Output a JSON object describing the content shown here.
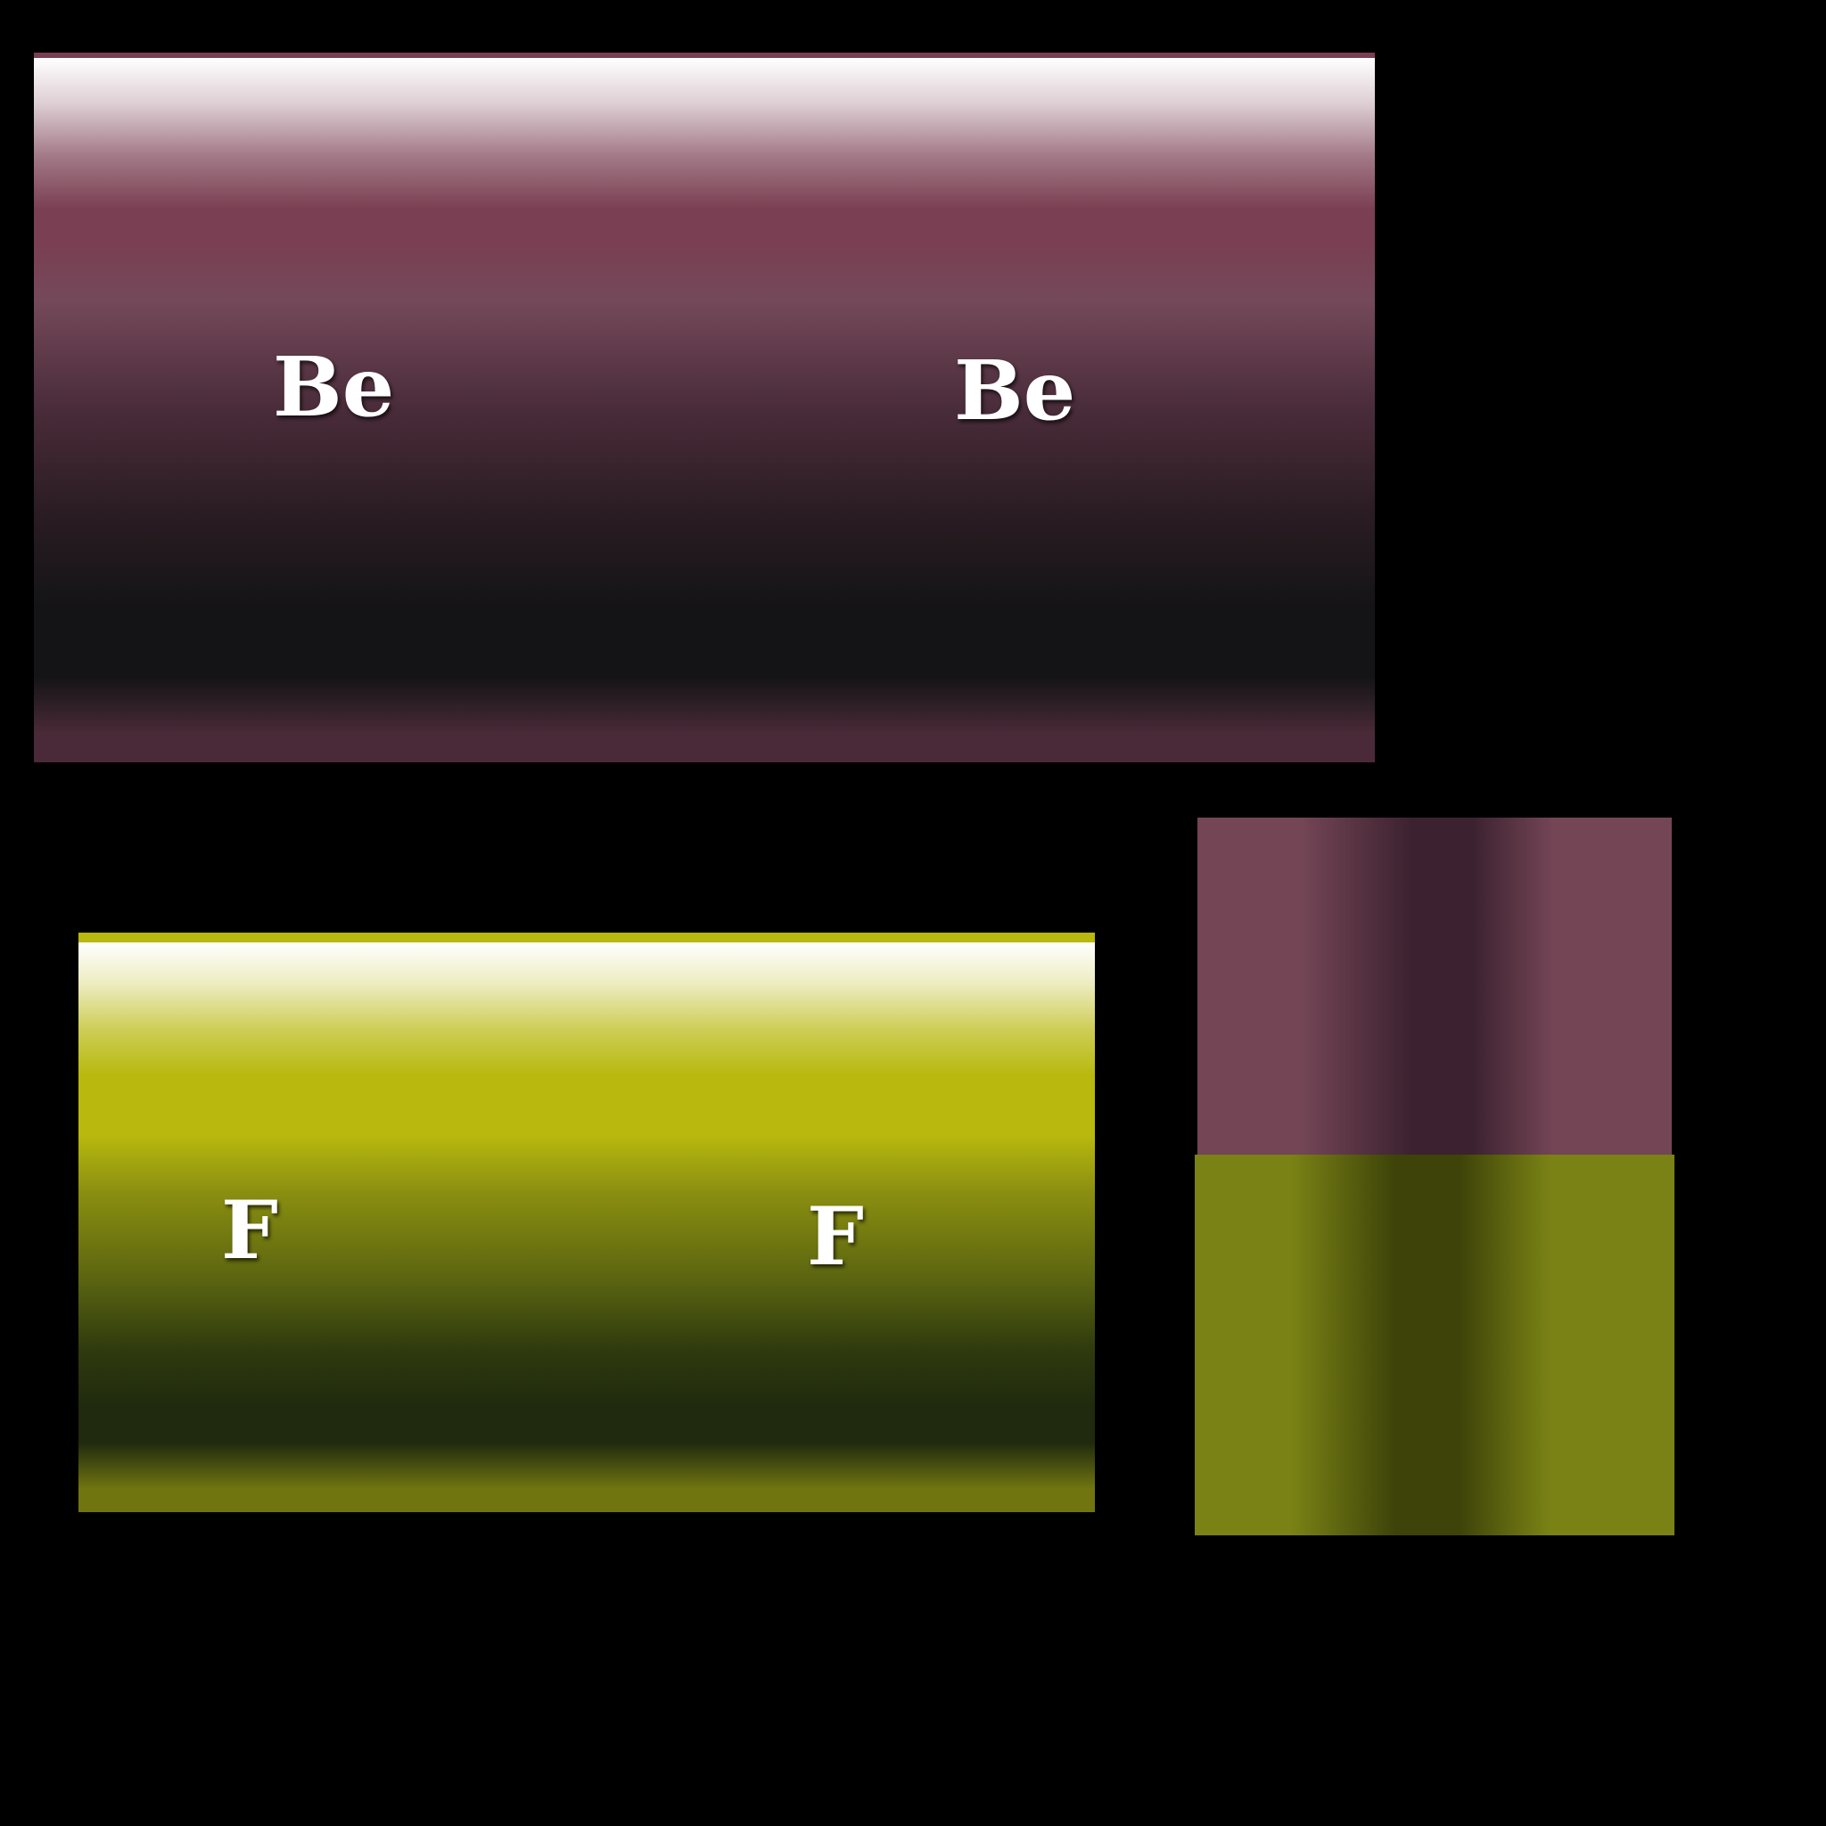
{
  "tubes": [
    {
      "id": "be",
      "labels": [
        "Be",
        "Be"
      ],
      "colors": {
        "main": "#7a3f52",
        "dark": "#141416",
        "edge": "#4a2a38"
      }
    },
    {
      "id": "f",
      "labels": [
        "F",
        "F"
      ],
      "colors": {
        "main": "#b8b80e",
        "dark": "#1f2a0e",
        "edge": "#707510"
      }
    }
  ],
  "swatches": {
    "top": {
      "base": "#734555",
      "dark": "#3c2230"
    },
    "bottom": {
      "base": "#7a8215",
      "dark": "#3d4309"
    }
  }
}
